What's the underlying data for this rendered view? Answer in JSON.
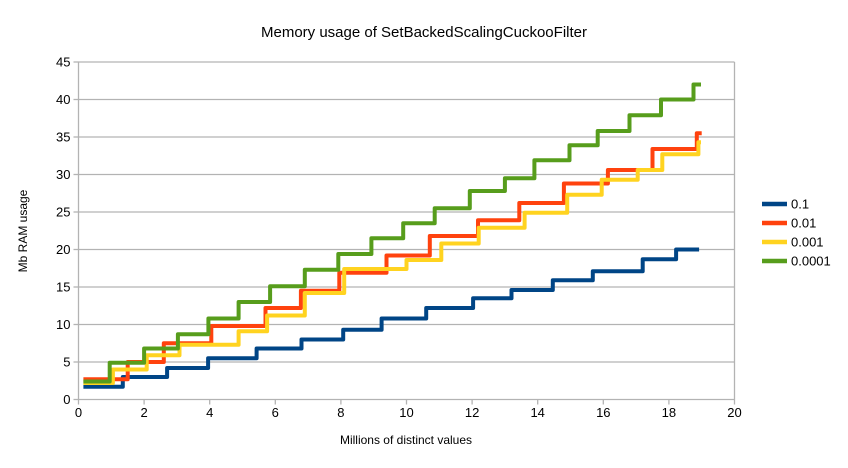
{
  "chart_data": {
    "type": "line",
    "subtype": "step-staircase",
    "title": "Memory usage of SetBackedScalingCuckooFilter",
    "xlabel": "Millions of distinct values",
    "ylabel": "Mb RAM usage",
    "xlim": [
      0,
      20
    ],
    "ylim": [
      0,
      45
    ],
    "x_ticks": [
      0,
      2,
      4,
      6,
      8,
      10,
      12,
      14,
      16,
      18,
      20
    ],
    "y_ticks": [
      0,
      5,
      10,
      15,
      20,
      25,
      30,
      35,
      40,
      45
    ],
    "grid": "horizontal gridlines every 5, light gray; vertical border lines at x=0 and x=20",
    "legend_position": "right",
    "colors": {
      "grid": "#b3b3b3",
      "axis": "#b3b3b3",
      "text": "#000000",
      "background": "#ffffff"
    },
    "series": [
      {
        "name": "0.1",
        "color": "#004586",
        "start": [
          0.15,
          1.7
        ],
        "steps": [
          [
            1.35,
            3.0
          ],
          [
            2.7,
            4.2
          ],
          [
            3.95,
            5.5
          ],
          [
            5.43,
            6.8
          ],
          [
            6.8,
            8.0
          ],
          [
            8.07,
            9.3
          ],
          [
            9.24,
            10.8
          ],
          [
            10.6,
            12.2
          ],
          [
            12.03,
            13.5
          ],
          [
            13.2,
            14.6
          ],
          [
            14.46,
            15.9
          ],
          [
            15.68,
            17.1
          ],
          [
            17.2,
            18.7
          ],
          [
            18.22,
            20.0
          ]
        ],
        "end_x": 18.92
      },
      {
        "name": "0.01",
        "color": "#ff420e",
        "start": [
          0.15,
          2.7
        ],
        "steps": [
          [
            1.5,
            5.0
          ],
          [
            2.6,
            7.5
          ],
          [
            4.05,
            9.8
          ],
          [
            5.7,
            12.2
          ],
          [
            6.78,
            14.5
          ],
          [
            7.95,
            16.9
          ],
          [
            9.39,
            19.2
          ],
          [
            10.71,
            21.8
          ],
          [
            12.18,
            23.9
          ],
          [
            13.44,
            26.2
          ],
          [
            14.8,
            28.8
          ],
          [
            16.14,
            30.6
          ],
          [
            17.5,
            33.4
          ],
          [
            18.85,
            35.5
          ]
        ],
        "end_x": 19.0
      },
      {
        "name": "0.001",
        "color": "#ffd320",
        "start": [
          0.15,
          2.2
        ],
        "steps": [
          [
            1.05,
            4.0
          ],
          [
            2.08,
            5.9
          ],
          [
            3.08,
            7.3
          ],
          [
            4.88,
            9.1
          ],
          [
            5.75,
            11.2
          ],
          [
            6.9,
            14.2
          ],
          [
            8.1,
            17.4
          ],
          [
            10.0,
            18.6
          ],
          [
            11.06,
            20.8
          ],
          [
            12.2,
            22.9
          ],
          [
            13.6,
            24.9
          ],
          [
            14.9,
            27.3
          ],
          [
            15.95,
            29.3
          ],
          [
            17.05,
            30.6
          ],
          [
            17.8,
            32.7
          ],
          [
            18.9,
            34.3
          ]
        ],
        "end_x": 18.98
      },
      {
        "name": "0.0001",
        "color": "#579d1c",
        "start": [
          0.15,
          2.4
        ],
        "steps": [
          [
            0.95,
            4.9
          ],
          [
            2.0,
            6.8
          ],
          [
            3.03,
            8.7
          ],
          [
            3.96,
            10.8
          ],
          [
            4.88,
            13.0
          ],
          [
            5.84,
            15.1
          ],
          [
            6.9,
            17.3
          ],
          [
            7.92,
            19.4
          ],
          [
            8.93,
            21.5
          ],
          [
            9.9,
            23.5
          ],
          [
            10.86,
            25.5
          ],
          [
            11.93,
            27.8
          ],
          [
            13.0,
            29.5
          ],
          [
            13.9,
            31.9
          ],
          [
            14.97,
            33.9
          ],
          [
            15.83,
            35.8
          ],
          [
            16.8,
            37.9
          ],
          [
            17.76,
            40.0
          ],
          [
            18.75,
            42.0
          ]
        ],
        "end_x": 18.98
      }
    ]
  }
}
